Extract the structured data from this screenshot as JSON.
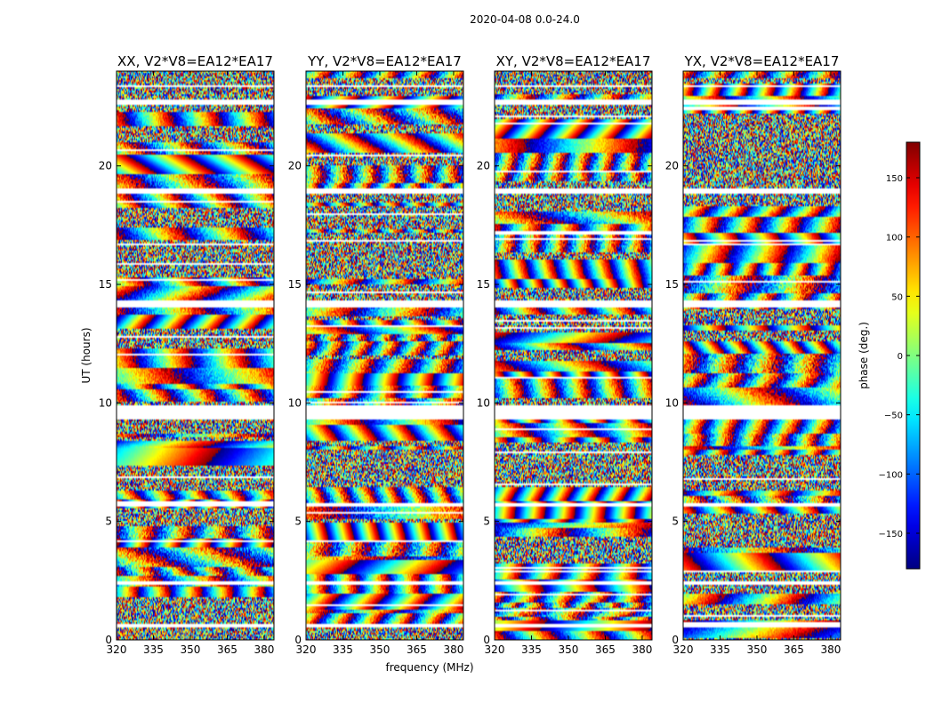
{
  "figure": {
    "suptitle": "2020-04-08 0.0-24.0"
  },
  "chart_data": {
    "type": "heatmap",
    "colormap": "jet",
    "xlabel": "frequency (MHz)",
    "ylabel": "UT (hours)",
    "xlim": [
      320,
      384
    ],
    "ylim": [
      0,
      24
    ],
    "x_ticks": [
      320,
      335,
      350,
      365,
      380
    ],
    "y_ticks": [
      0,
      5,
      10,
      15,
      20
    ],
    "panels": [
      {
        "title": "XX, V2*V8=EA12*EA17",
        "seed": 11
      },
      {
        "title": "YY, V2*V8=EA12*EA17",
        "seed": 29
      },
      {
        "title": "XY, V2*V8=EA12*EA17",
        "seed": 47
      },
      {
        "title": "YX, V2*V8=EA12*EA17",
        "seed": 83
      }
    ],
    "gaps_hours": [
      [
        0.5,
        0.65
      ],
      [
        2.35,
        2.5
      ],
      [
        5.6,
        5.75
      ],
      [
        9.3,
        9.9
      ],
      [
        14.0,
        14.3
      ],
      [
        18.8,
        19.05
      ],
      [
        22.6,
        22.8
      ],
      [
        23.3,
        23.4
      ]
    ],
    "colorbar": {
      "label": "phase (deg.)",
      "range": [
        -180,
        180
      ],
      "ticks": [
        -150,
        -100,
        -50,
        0,
        50,
        100,
        150
      ],
      "tick_labels": [
        "−150",
        "−100",
        "−50",
        "0",
        "50",
        "100",
        "150"
      ]
    }
  }
}
